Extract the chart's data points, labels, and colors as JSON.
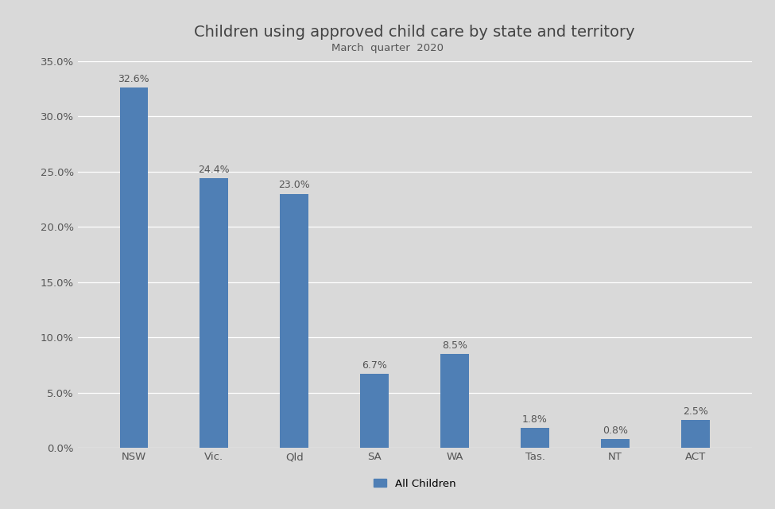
{
  "title": "Children using approved child care by state and territory",
  "subtitle": "March  quarter  2020",
  "categories": [
    "NSW",
    "Vic.",
    "Qld",
    "SA",
    "WA",
    "Tas.",
    "NT",
    "ACT"
  ],
  "values": [
    32.6,
    24.4,
    23.0,
    6.7,
    8.5,
    1.8,
    0.8,
    2.5
  ],
  "labels": [
    "32.6%",
    "24.4%",
    "23.0%",
    "6.7%",
    "8.5%",
    "1.8%",
    "0.8%",
    "2.5%"
  ],
  "bar_color": "#4f7fb5",
  "background_color": "#d9d9d9",
  "ylim": [
    0,
    35.0
  ],
  "yticks": [
    0.0,
    5.0,
    10.0,
    15.0,
    20.0,
    25.0,
    30.0,
    35.0
  ],
  "ytick_labels": [
    "0.0%",
    "5.0%",
    "10.0%",
    "15.0%",
    "20.0%",
    "25.0%",
    "30.0%",
    "35.0%"
  ],
  "legend_label": "All Children",
  "title_fontsize": 14,
  "subtitle_fontsize": 9.5,
  "axis_label_fontsize": 9.5,
  "bar_label_fontsize": 9,
  "legend_fontsize": 9.5,
  "bar_width": 0.35
}
